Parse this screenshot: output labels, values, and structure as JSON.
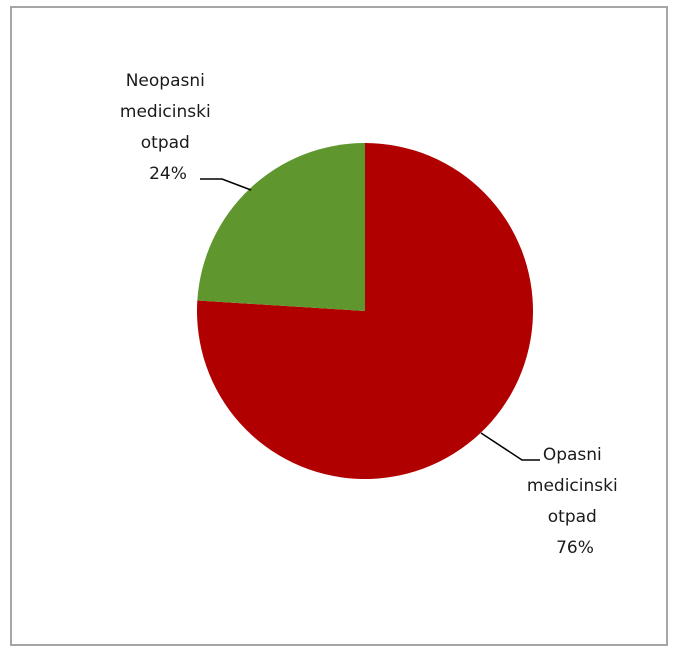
{
  "chart_data": {
    "type": "pie",
    "title": "",
    "slices": [
      {
        "label_lines": [
          "Opasni",
          "medicinski",
          "otpad"
        ],
        "percent_label": "76%",
        "value": 76,
        "color": "#b00000"
      },
      {
        "label_lines": [
          "Neopasni",
          "medicinski",
          "otpad"
        ],
        "percent_label": "24%",
        "value": 24,
        "color": "#5f962e"
      }
    ],
    "start_angle_deg": 0,
    "direction": "clockwise",
    "border_color": "#a6a6a6",
    "leader_line_color": "#000000"
  }
}
